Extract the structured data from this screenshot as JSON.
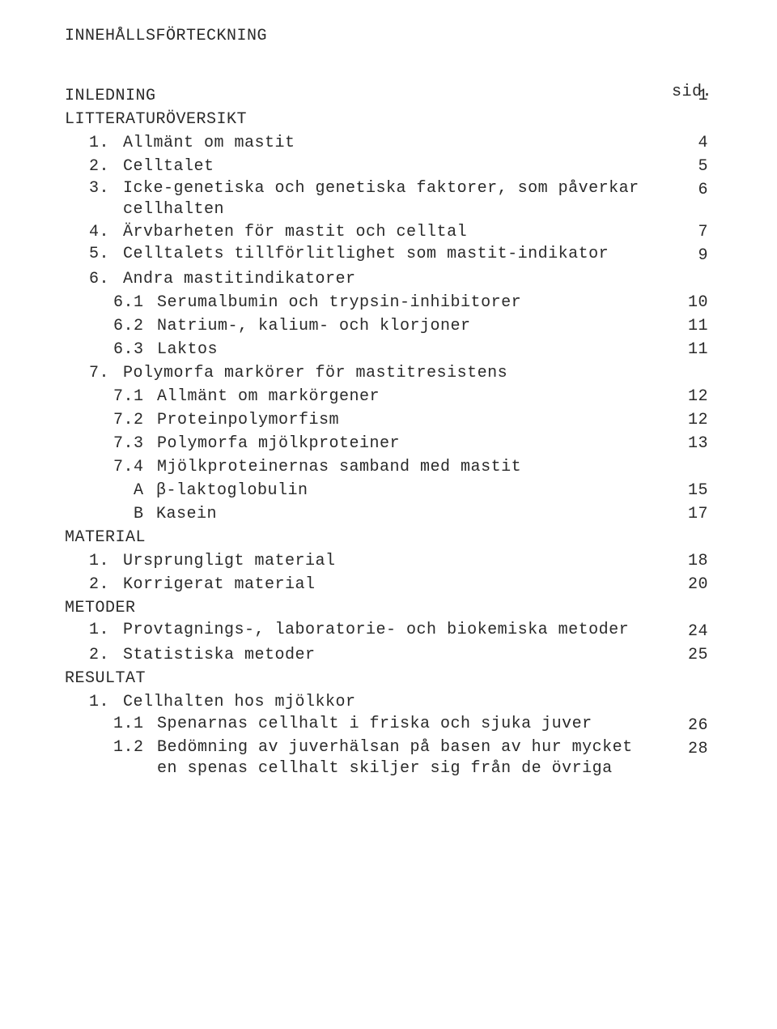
{
  "title": "INNEHÅLLSFÖRTECKNING",
  "page_header": "sid.",
  "entries": [
    {
      "indent": "sect",
      "num": "",
      "label": "INLEDNING",
      "page": "1"
    },
    {
      "indent": "sect",
      "num": "",
      "label": "LITTERATURÖVERSIKT",
      "page": ""
    },
    {
      "indent": "l1",
      "num": "1.",
      "label": "Allmänt om mastit",
      "page": "4"
    },
    {
      "indent": "l1",
      "num": "2.",
      "label": "Celltalet",
      "page": "5"
    },
    {
      "indent": "l1",
      "num": "3.",
      "label": "Icke-genetiska och genetiska faktorer, som påverkar cellhalten",
      "page": "6",
      "multi": true
    },
    {
      "indent": "l1",
      "num": "4.",
      "label": "Ärvbarheten för mastit och celltal",
      "page": "7"
    },
    {
      "indent": "l1",
      "num": "5.",
      "label": "Celltalets tillförlitlighet som mastit-indikator",
      "page": "9",
      "multi": true
    },
    {
      "indent": "l1",
      "num": "6.",
      "label": "Andra mastitindikatorer",
      "page": ""
    },
    {
      "indent": "l2",
      "num": "6.1",
      "label": "Serumalbumin och trypsin-inhibitorer",
      "page": "10"
    },
    {
      "indent": "l2",
      "num": "6.2",
      "label": "Natrium-, kalium- och klorjoner",
      "page": "11"
    },
    {
      "indent": "l2",
      "num": "6.3",
      "label": "Laktos",
      "page": "11"
    },
    {
      "indent": "l1",
      "num": "7.",
      "label": "Polymorfa markörer för mastitresistens",
      "page": ""
    },
    {
      "indent": "l2",
      "num": "7.1",
      "label": "Allmänt om markörgener",
      "page": "12"
    },
    {
      "indent": "l2",
      "num": "7.2",
      "label": "Proteinpolymorfism",
      "page": "12"
    },
    {
      "indent": "l2",
      "num": "7.3",
      "label": "Polymorfa mjölkproteiner",
      "page": "13"
    },
    {
      "indent": "l2",
      "num": "7.4",
      "label": "Mjölkproteinernas samband med mastit",
      "page": ""
    },
    {
      "indent": "l3",
      "num": "A",
      "label": "β-laktoglobulin",
      "page": "15"
    },
    {
      "indent": "l3",
      "num": "B",
      "label": "Kasein",
      "page": "17"
    },
    {
      "indent": "sect",
      "num": "",
      "label": "MATERIAL",
      "page": ""
    },
    {
      "indent": "l1",
      "num": "1.",
      "label": "Ursprungligt material",
      "page": "18"
    },
    {
      "indent": "l1",
      "num": "2.",
      "label": "Korrigerat material",
      "page": "20"
    },
    {
      "indent": "sect",
      "num": "",
      "label": "METODER",
      "page": ""
    },
    {
      "indent": "l1",
      "num": "1.",
      "label": "Provtagnings-, laboratorie- och biokemiska metoder",
      "page": "24",
      "multi": true
    },
    {
      "indent": "l1",
      "num": "2.",
      "label": "Statistiska metoder",
      "page": "25"
    },
    {
      "indent": "sect",
      "num": "",
      "label": "RESULTAT",
      "page": ""
    },
    {
      "indent": "l1",
      "num": "1.",
      "label": "Cellhalten hos mjölkkor",
      "page": ""
    },
    {
      "indent": "l2",
      "num": "1.1",
      "label": "Spenarnas cellhalt i friska och sjuka juver",
      "page": "26",
      "multi": true
    },
    {
      "indent": "l2",
      "num": "1.2",
      "label": "Bedömning av juverhälsan på basen av hur mycket en spenas cellhalt skiljer sig från de övriga",
      "page": "28",
      "multi": true
    }
  ]
}
